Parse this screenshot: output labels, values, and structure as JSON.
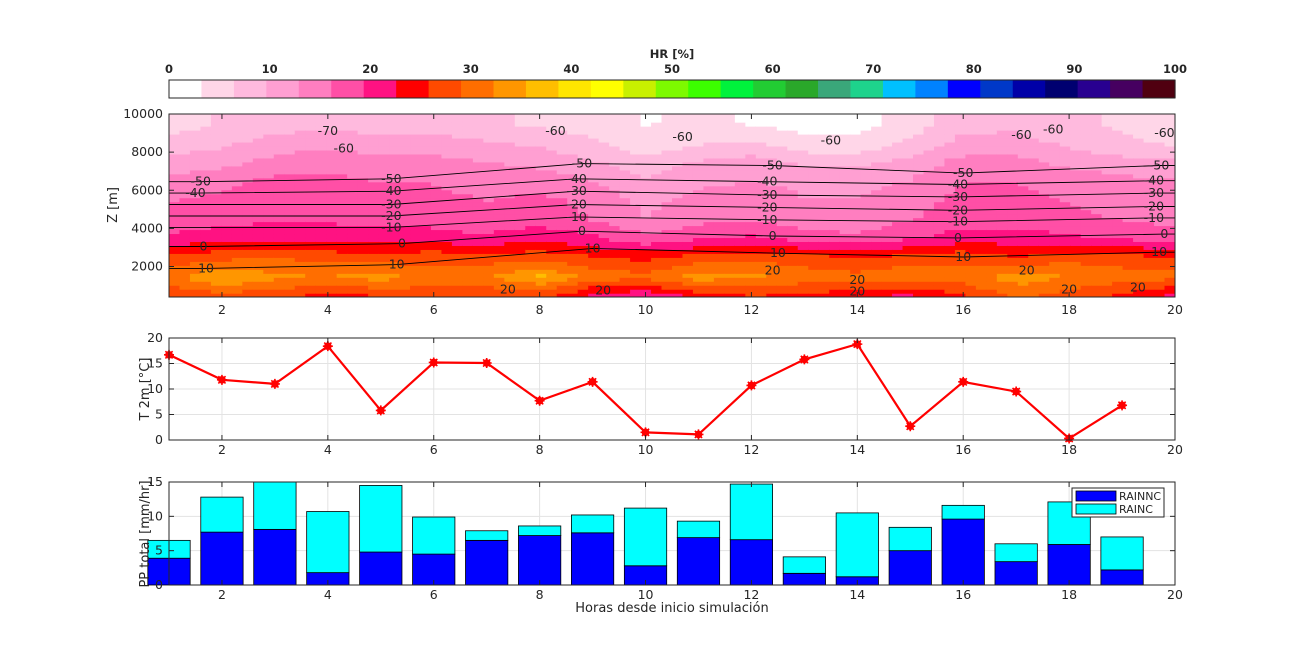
{
  "colorbar": {
    "label": "HR [%]",
    "ticks": [
      0,
      10,
      20,
      30,
      40,
      50,
      60,
      70,
      80,
      90,
      100
    ],
    "colors": [
      "#ffffff",
      "#ffd6e8",
      "#ffbade",
      "#ff9fd2",
      "#ff7ec0",
      "#ff4fa6",
      "#ff1282",
      "#ff0000",
      "#ff4a00",
      "#ff6e00",
      "#ff9600",
      "#ffbe00",
      "#ffe600",
      "#ffff00",
      "#c8f000",
      "#7dfa00",
      "#3cff00",
      "#00f23c",
      "#22cc33",
      "#2aa82a",
      "#3aa77a",
      "#1ed38c",
      "#00c0ff",
      "#0082ff",
      "#0000ff",
      "#0038c8",
      "#0000a8",
      "#000070",
      "#280090",
      "#460060",
      "#500010"
    ]
  },
  "chart_data": [
    {
      "type": "contour",
      "title": "",
      "xlabel": "",
      "ylabel": "Z [m]",
      "xlim": [
        1,
        20
      ],
      "ylim": [
        400,
        10000
      ],
      "xticks": [
        2,
        4,
        6,
        8,
        10,
        12,
        14,
        16,
        18,
        20
      ],
      "yticks": [
        2000,
        4000,
        6000,
        8000,
        10000
      ],
      "filled_variable": "HR [%]",
      "x": [
        1,
        2,
        3,
        4,
        5,
        6,
        7,
        8,
        9,
        10,
        11,
        12,
        13,
        14,
        15,
        16,
        17,
        18,
        19,
        20
      ],
      "z": [
        500,
        1500,
        2500,
        3500,
        4500,
        5500,
        6500,
        7500,
        8500,
        9500
      ],
      "hr_grid": [
        [
          26,
          28,
          27,
          25,
          26,
          28,
          26,
          27,
          22,
          20,
          24,
          26,
          25,
          24,
          22,
          26,
          30,
          28,
          25,
          22
        ],
        [
          31,
          36,
          33,
          32,
          34,
          30,
          32,
          36,
          31,
          30,
          34,
          33,
          31,
          30,
          32,
          30,
          34,
          32,
          31,
          30
        ],
        [
          27,
          28,
          29,
          28,
          27,
          28,
          27,
          28,
          26,
          25,
          27,
          28,
          27,
          26,
          27,
          28,
          26,
          28,
          27,
          26
        ],
        [
          20,
          22,
          22,
          21,
          22,
          21,
          20,
          22,
          20,
          17,
          19,
          20,
          18,
          17,
          19,
          21,
          21,
          20,
          19,
          18
        ],
        [
          17,
          18,
          19,
          19,
          18,
          18,
          17,
          18,
          16,
          13,
          15,
          16,
          14,
          14,
          16,
          18,
          18,
          17,
          16,
          15
        ],
        [
          16,
          17,
          18,
          18,
          17,
          17,
          16,
          17,
          15,
          12,
          14,
          15,
          13,
          13,
          15,
          17,
          17,
          16,
          15,
          14
        ],
        [
          14,
          15,
          17,
          17,
          16,
          16,
          15,
          15,
          13,
          10,
          12,
          13,
          12,
          12,
          13,
          16,
          16,
          15,
          14,
          13
        ],
        [
          11,
          12,
          14,
          15,
          14,
          14,
          13,
          12,
          10,
          8,
          10,
          11,
          9,
          9,
          11,
          14,
          14,
          12,
          11,
          10
        ],
        [
          7,
          9,
          11,
          12,
          11,
          11,
          10,
          9,
          7,
          4,
          6,
          7,
          4,
          4,
          7,
          11,
          11,
          9,
          7,
          6
        ],
        [
          5,
          7,
          8,
          9,
          8,
          8,
          7,
          6,
          5,
          3,
          4,
          3,
          2,
          2,
          5,
          8,
          9,
          7,
          6,
          5
        ]
      ],
      "contour_labels": [
        {
          "text": "-70",
          "x": 4.0,
          "y": 9100
        },
        {
          "text": "-60",
          "x": 8.3,
          "y": 9100
        },
        {
          "text": "-60",
          "x": 10.7,
          "y": 8800
        },
        {
          "text": "-60",
          "x": 13.5,
          "y": 8600
        },
        {
          "text": "-60",
          "x": 17.7,
          "y": 9200
        },
        {
          "text": "-60",
          "x": 19.8,
          "y": 9000
        },
        {
          "text": "-60",
          "x": 17.1,
          "y": 8900
        },
        {
          "text": "-60",
          "x": 4.3,
          "y": 8200
        },
        {
          "text": "-50",
          "x": 1.6,
          "y": 6450
        },
        {
          "text": "-50",
          "x": 5.2,
          "y": 6600
        },
        {
          "text": "-50",
          "x": 8.8,
          "y": 7400
        },
        {
          "text": "-50",
          "x": 12.4,
          "y": 7300
        },
        {
          "text": "-50",
          "x": 16.0,
          "y": 6900
        },
        {
          "text": "-50",
          "x": 19.7,
          "y": 7300
        },
        {
          "text": "-40",
          "x": 1.5,
          "y": 5850
        },
        {
          "text": "-40",
          "x": 5.2,
          "y": 5950
        },
        {
          "text": "-40",
          "x": 8.7,
          "y": 6600
        },
        {
          "text": "-40",
          "x": 12.3,
          "y": 6450
        },
        {
          "text": "-40",
          "x": 15.9,
          "y": 6300
        },
        {
          "text": "-40",
          "x": 19.6,
          "y": 6500
        },
        {
          "text": "-30",
          "x": 5.2,
          "y": 5250
        },
        {
          "text": "-30",
          "x": 8.7,
          "y": 5950
        },
        {
          "text": "-30",
          "x": 12.3,
          "y": 5750
        },
        {
          "text": "-30",
          "x": 15.9,
          "y": 5650
        },
        {
          "text": "-30",
          "x": 19.6,
          "y": 5850
        },
        {
          "text": "-20",
          "x": 5.2,
          "y": 4650
        },
        {
          "text": "-20",
          "x": 8.7,
          "y": 5250
        },
        {
          "text": "-20",
          "x": 12.3,
          "y": 5100
        },
        {
          "text": "-20",
          "x": 15.9,
          "y": 4950
        },
        {
          "text": "-20",
          "x": 19.6,
          "y": 5150
        },
        {
          "text": "-10",
          "x": 5.2,
          "y": 4050
        },
        {
          "text": "-10",
          "x": 8.7,
          "y": 4600
        },
        {
          "text": "-10",
          "x": 12.3,
          "y": 4450
        },
        {
          "text": "-10",
          "x": 15.9,
          "y": 4350
        },
        {
          "text": "-10",
          "x": 19.6,
          "y": 4550
        },
        {
          "text": "0",
          "x": 1.65,
          "y": 3050
        },
        {
          "text": "0",
          "x": 5.4,
          "y": 3200
        },
        {
          "text": "0",
          "x": 8.8,
          "y": 3850
        },
        {
          "text": "0",
          "x": 12.4,
          "y": 3600
        },
        {
          "text": "0",
          "x": 15.9,
          "y": 3500
        },
        {
          "text": "0",
          "x": 19.8,
          "y": 3700
        },
        {
          "text": "10",
          "x": 1.7,
          "y": 1900
        },
        {
          "text": "10",
          "x": 5.3,
          "y": 2100
        },
        {
          "text": "10",
          "x": 9.0,
          "y": 2950
        },
        {
          "text": "10",
          "x": 12.5,
          "y": 2700
        },
        {
          "text": "10",
          "x": 16.0,
          "y": 2500
        },
        {
          "text": "10",
          "x": 19.7,
          "y": 2750
        },
        {
          "text": "20",
          "x": 7.4,
          "y": 800
        },
        {
          "text": "20",
          "x": 9.2,
          "y": 750
        },
        {
          "text": "20",
          "x": 12.4,
          "y": 1800
        },
        {
          "text": "20",
          "x": 14.0,
          "y": 1300
        },
        {
          "text": "20",
          "x": 14.0,
          "y": 700
        },
        {
          "text": "20",
          "x": 17.2,
          "y": 1800
        },
        {
          "text": "20",
          "x": 18.0,
          "y": 800
        },
        {
          "text": "20",
          "x": 19.3,
          "y": 900
        }
      ]
    },
    {
      "type": "line",
      "xlabel": "",
      "ylabel": "T 2m [°C]",
      "xlim": [
        1,
        20
      ],
      "ylim": [
        0,
        20
      ],
      "xticks": [
        2,
        4,
        6,
        8,
        10,
        12,
        14,
        16,
        18,
        20
      ],
      "yticks": [
        0,
        5,
        10,
        15,
        20
      ],
      "grid": true,
      "color": "#ff0000",
      "x": [
        1,
        2,
        3,
        4,
        5,
        6,
        7,
        8,
        9,
        10,
        11,
        12,
        13,
        14,
        15,
        16,
        17,
        18,
        19
      ],
      "y": [
        16.7,
        11.8,
        11.0,
        18.4,
        5.8,
        15.2,
        15.1,
        7.7,
        11.4,
        1.5,
        1.1,
        10.7,
        15.8,
        18.8,
        2.7,
        11.4,
        9.5,
        0.3,
        6.8
      ]
    },
    {
      "type": "bar",
      "stacked": true,
      "xlabel": "Horas desde inicio simulación",
      "ylabel": "PP total [mm/hr]",
      "xlim": [
        1,
        20
      ],
      "ylim": [
        0,
        15
      ],
      "xticks": [
        2,
        4,
        6,
        8,
        10,
        12,
        14,
        16,
        18,
        20
      ],
      "yticks": [
        0,
        5,
        10,
        15
      ],
      "grid": true,
      "legend_position": "top-right",
      "x": [
        1,
        2,
        3,
        4,
        5,
        6,
        7,
        8,
        9,
        10,
        11,
        12,
        13,
        14,
        15,
        16,
        17,
        18,
        19
      ],
      "series": [
        {
          "name": "RAINNC",
          "color": "#0000ff",
          "values": [
            3.9,
            7.7,
            8.1,
            1.8,
            4.8,
            4.5,
            6.5,
            7.2,
            7.6,
            2.8,
            6.9,
            6.6,
            1.7,
            1.2,
            5.0,
            9.6,
            3.4,
            5.9,
            2.2
          ]
        },
        {
          "name": "RAINC",
          "color": "#00ffff",
          "values": [
            2.6,
            5.1,
            7.0,
            8.9,
            9.7,
            5.4,
            1.4,
            1.4,
            2.6,
            8.4,
            2.4,
            8.1,
            2.4,
            9.3,
            3.4,
            2.0,
            2.6,
            6.2,
            4.8
          ]
        }
      ]
    }
  ]
}
